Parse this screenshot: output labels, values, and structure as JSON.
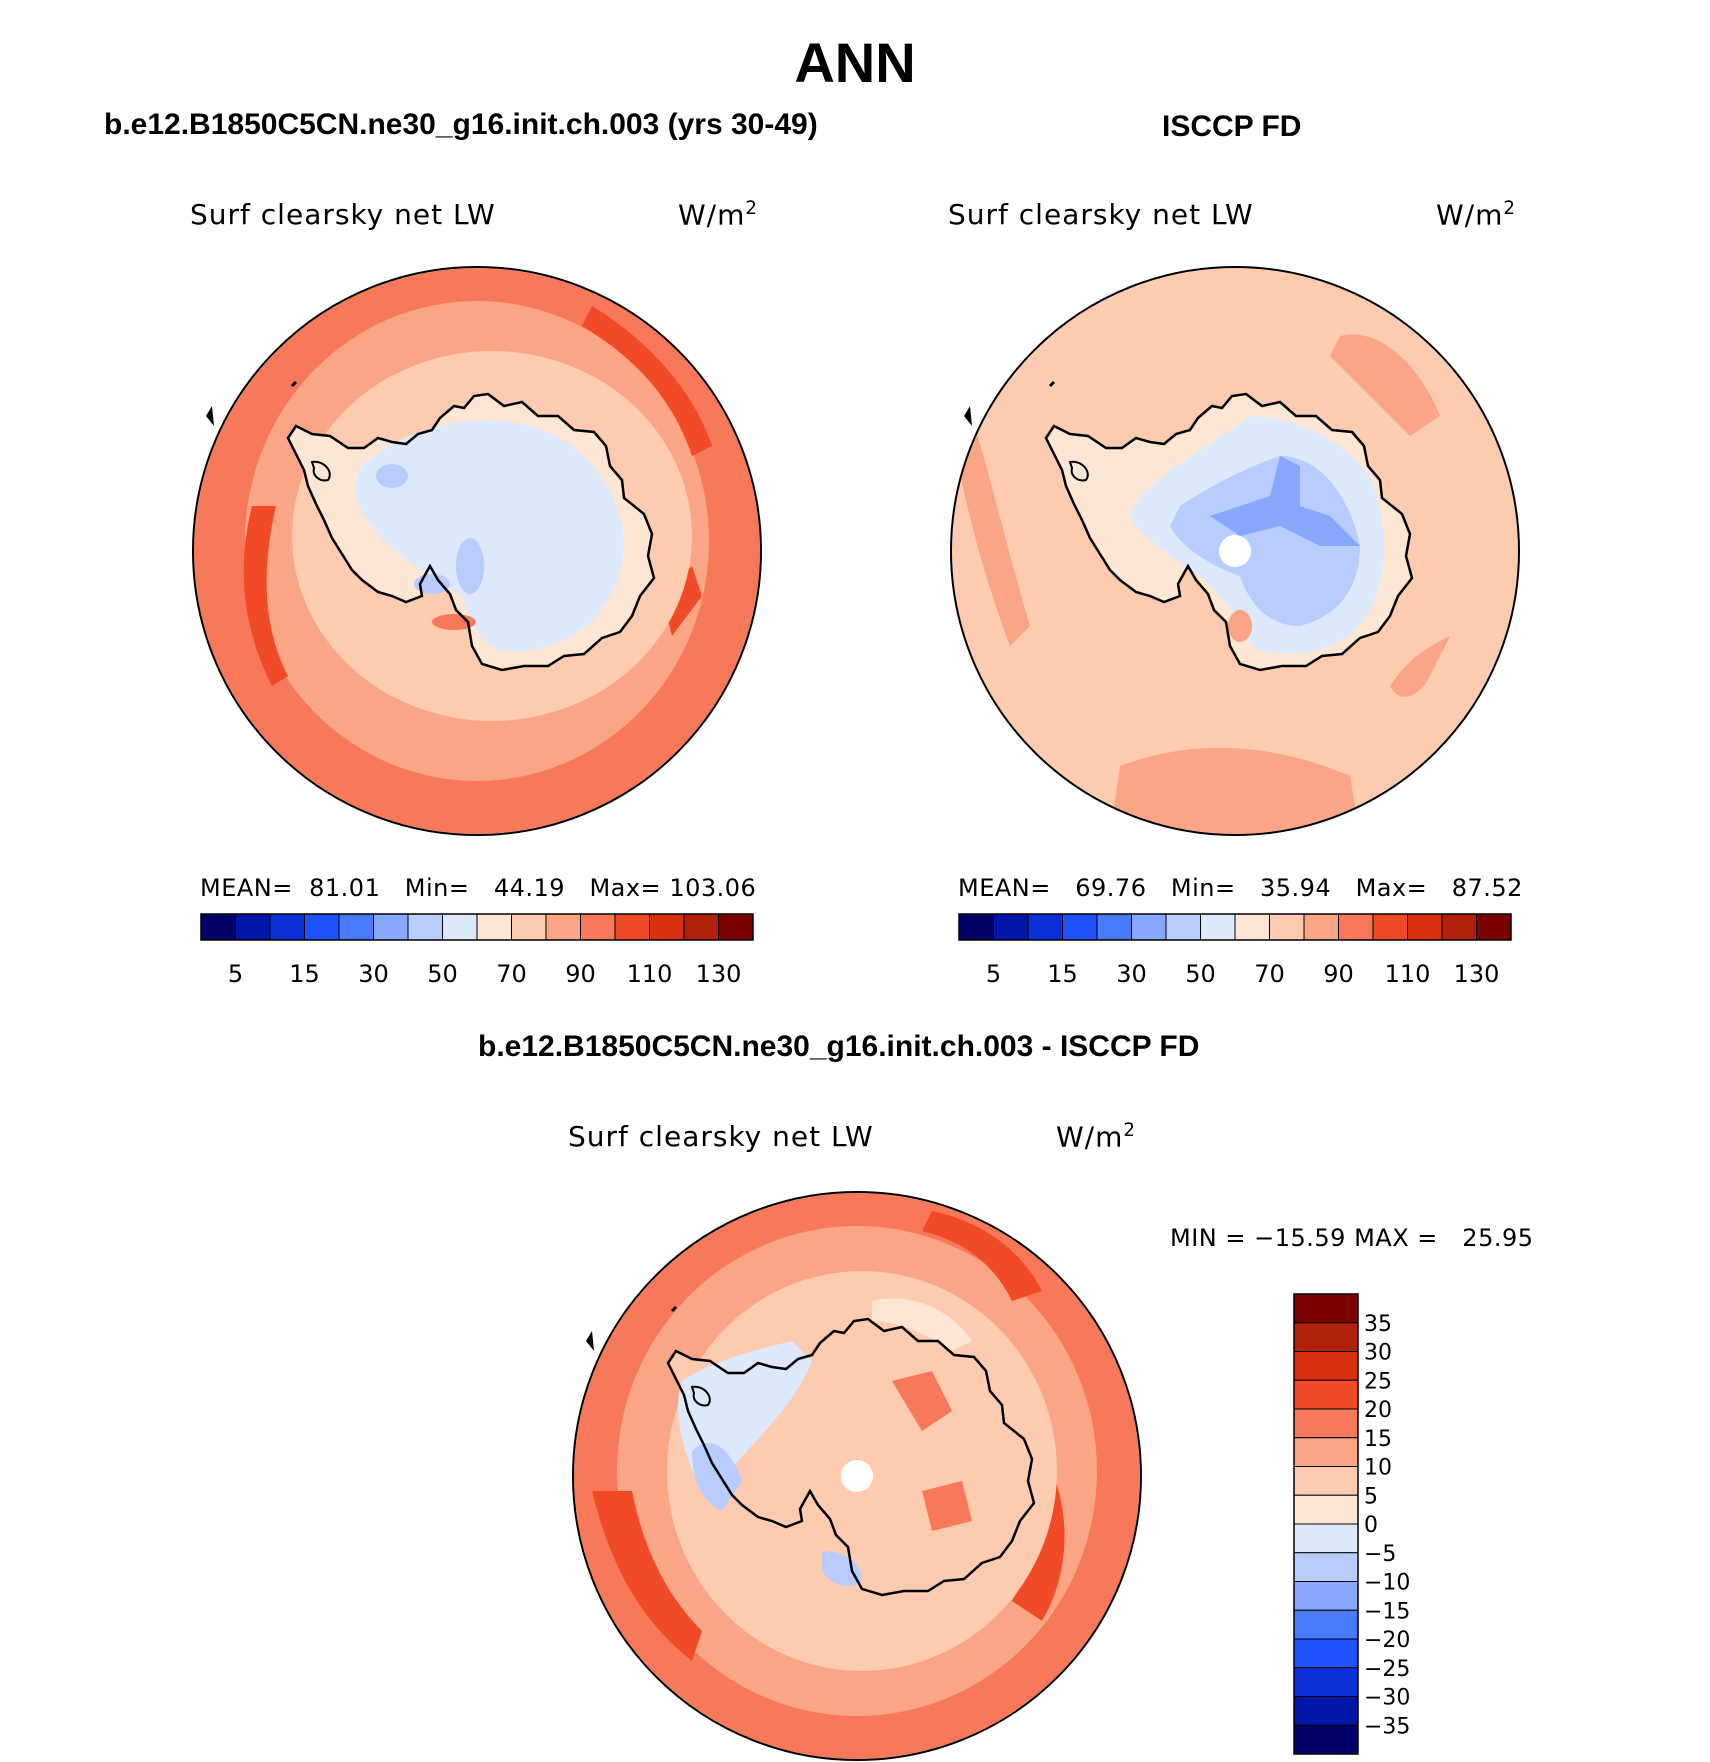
{
  "page_title": "ANN",
  "chart_data": [
    {
      "type": "heatmap",
      "title": "b.e12.B1850C5CN.ne30_g16.init.ch.003 (yrs 30-49)",
      "variable": "Surf clearsky net LW",
      "units_base": "W/m",
      "units_exp": "2",
      "projection": "south polar stereographic",
      "stats": {
        "mean_label": "MEAN=",
        "mean": "81.01",
        "min_label": "Min=",
        "min": "44.19",
        "max_label": "Max=",
        "max": "103.06"
      },
      "colorbar": {
        "orientation": "horizontal",
        "tick_labels": [
          "5",
          "15",
          "30",
          "50",
          "70",
          "90",
          "110",
          "130"
        ]
      }
    },
    {
      "type": "heatmap",
      "title": "ISCCP FD",
      "variable": "Surf clearsky net LW",
      "units_base": "W/m",
      "units_exp": "2",
      "projection": "south polar stereographic",
      "stats": {
        "mean_label": "MEAN=",
        "mean": "69.76",
        "min_label": "Min=",
        "min": "35.94",
        "max_label": "Max=",
        "max": "87.52"
      },
      "colorbar": {
        "orientation": "horizontal",
        "tick_labels": [
          "5",
          "15",
          "30",
          "50",
          "70",
          "90",
          "110",
          "130"
        ]
      }
    },
    {
      "type": "heatmap",
      "title": "b.e12.B1850C5CN.ne30_g16.init.ch.003 - ISCCP FD",
      "variable": "Surf clearsky net LW",
      "units_base": "W/m",
      "units_exp": "2",
      "projection": "south polar stereographic",
      "stats": {
        "min_label": "MIN =",
        "min": "−15.59",
        "max_label": "MAX =",
        "max": "25.95"
      },
      "colorbar": {
        "orientation": "vertical",
        "tick_labels": [
          "35",
          "30",
          "25",
          "20",
          "15",
          "10",
          "5",
          "0",
          "−5",
          "−10",
          "−15",
          "−20",
          "−25",
          "−30",
          "−35"
        ]
      }
    }
  ],
  "colors": {
    "abs_scale": [
      "#000066",
      "#0016a8",
      "#0a2fd6",
      "#1f52ff",
      "#4a7aff",
      "#88a8ff",
      "#b8ccff",
      "#dde9fb",
      "#fde6d3",
      "#fccbb0",
      "#f9a586",
      "#f7795a",
      "#f04a26",
      "#d8300e",
      "#b0200a",
      "#7d0000"
    ],
    "diff_scale": [
      "#000066",
      "#0016a8",
      "#0a2fd6",
      "#1f52ff",
      "#4a7aff",
      "#88a8ff",
      "#b8ccff",
      "#dde9fb",
      "#fde6d3",
      "#fccbb0",
      "#f9a586",
      "#f7795a",
      "#f04a26",
      "#d8300e",
      "#b0200a",
      "#7d0000"
    ]
  }
}
